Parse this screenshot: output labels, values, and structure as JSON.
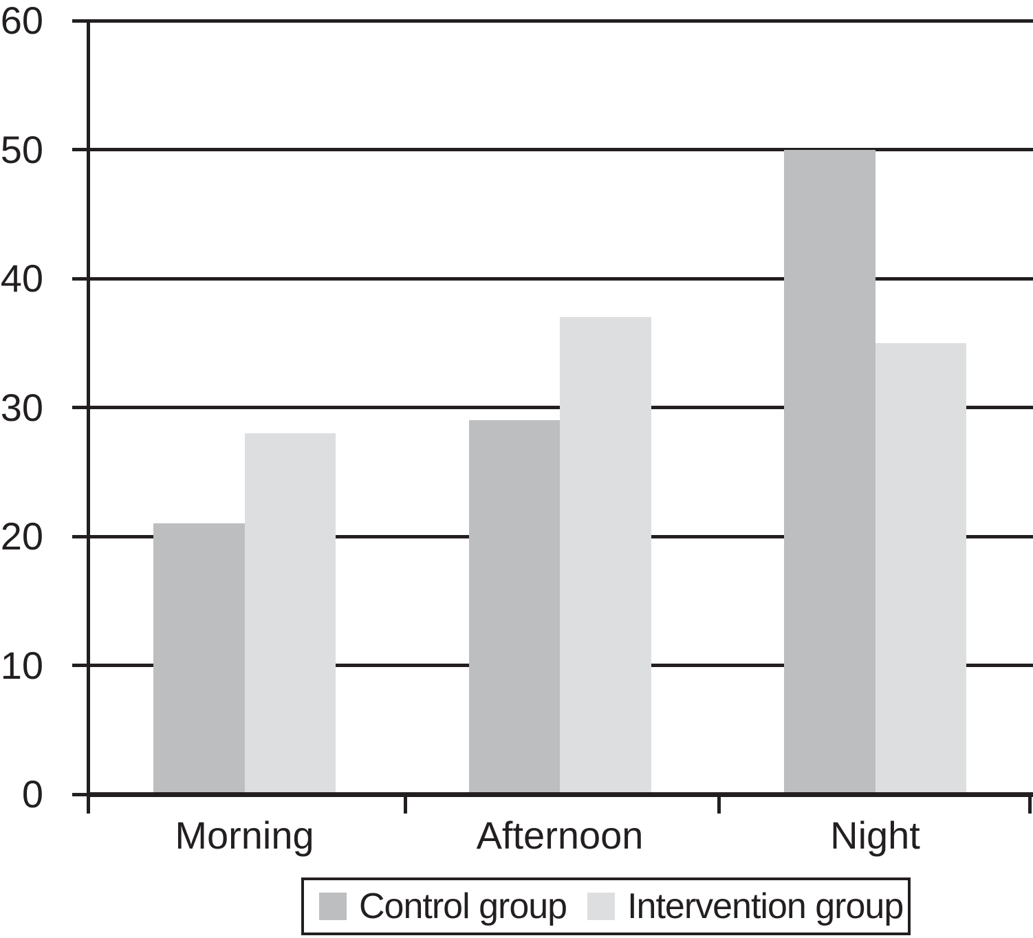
{
  "chart_data": {
    "type": "bar",
    "title": "",
    "xlabel": "",
    "ylabel": "",
    "categories": [
      "Morning",
      "Afternoon",
      "Night"
    ],
    "series": [
      {
        "name": "Control group",
        "color": "#bcbec0",
        "values": [
          21,
          29,
          50
        ]
      },
      {
        "name": "Intervention group",
        "color": "#dddee0",
        "values": [
          28,
          37,
          35
        ]
      }
    ],
    "ylim": [
      0,
      60
    ],
    "yticks": [
      0,
      10,
      20,
      30,
      40,
      50,
      60
    ],
    "grid": true,
    "legend_position": "bottom"
  },
  "colors": {
    "axis_line": "#231f20",
    "background": "#ffffff"
  }
}
